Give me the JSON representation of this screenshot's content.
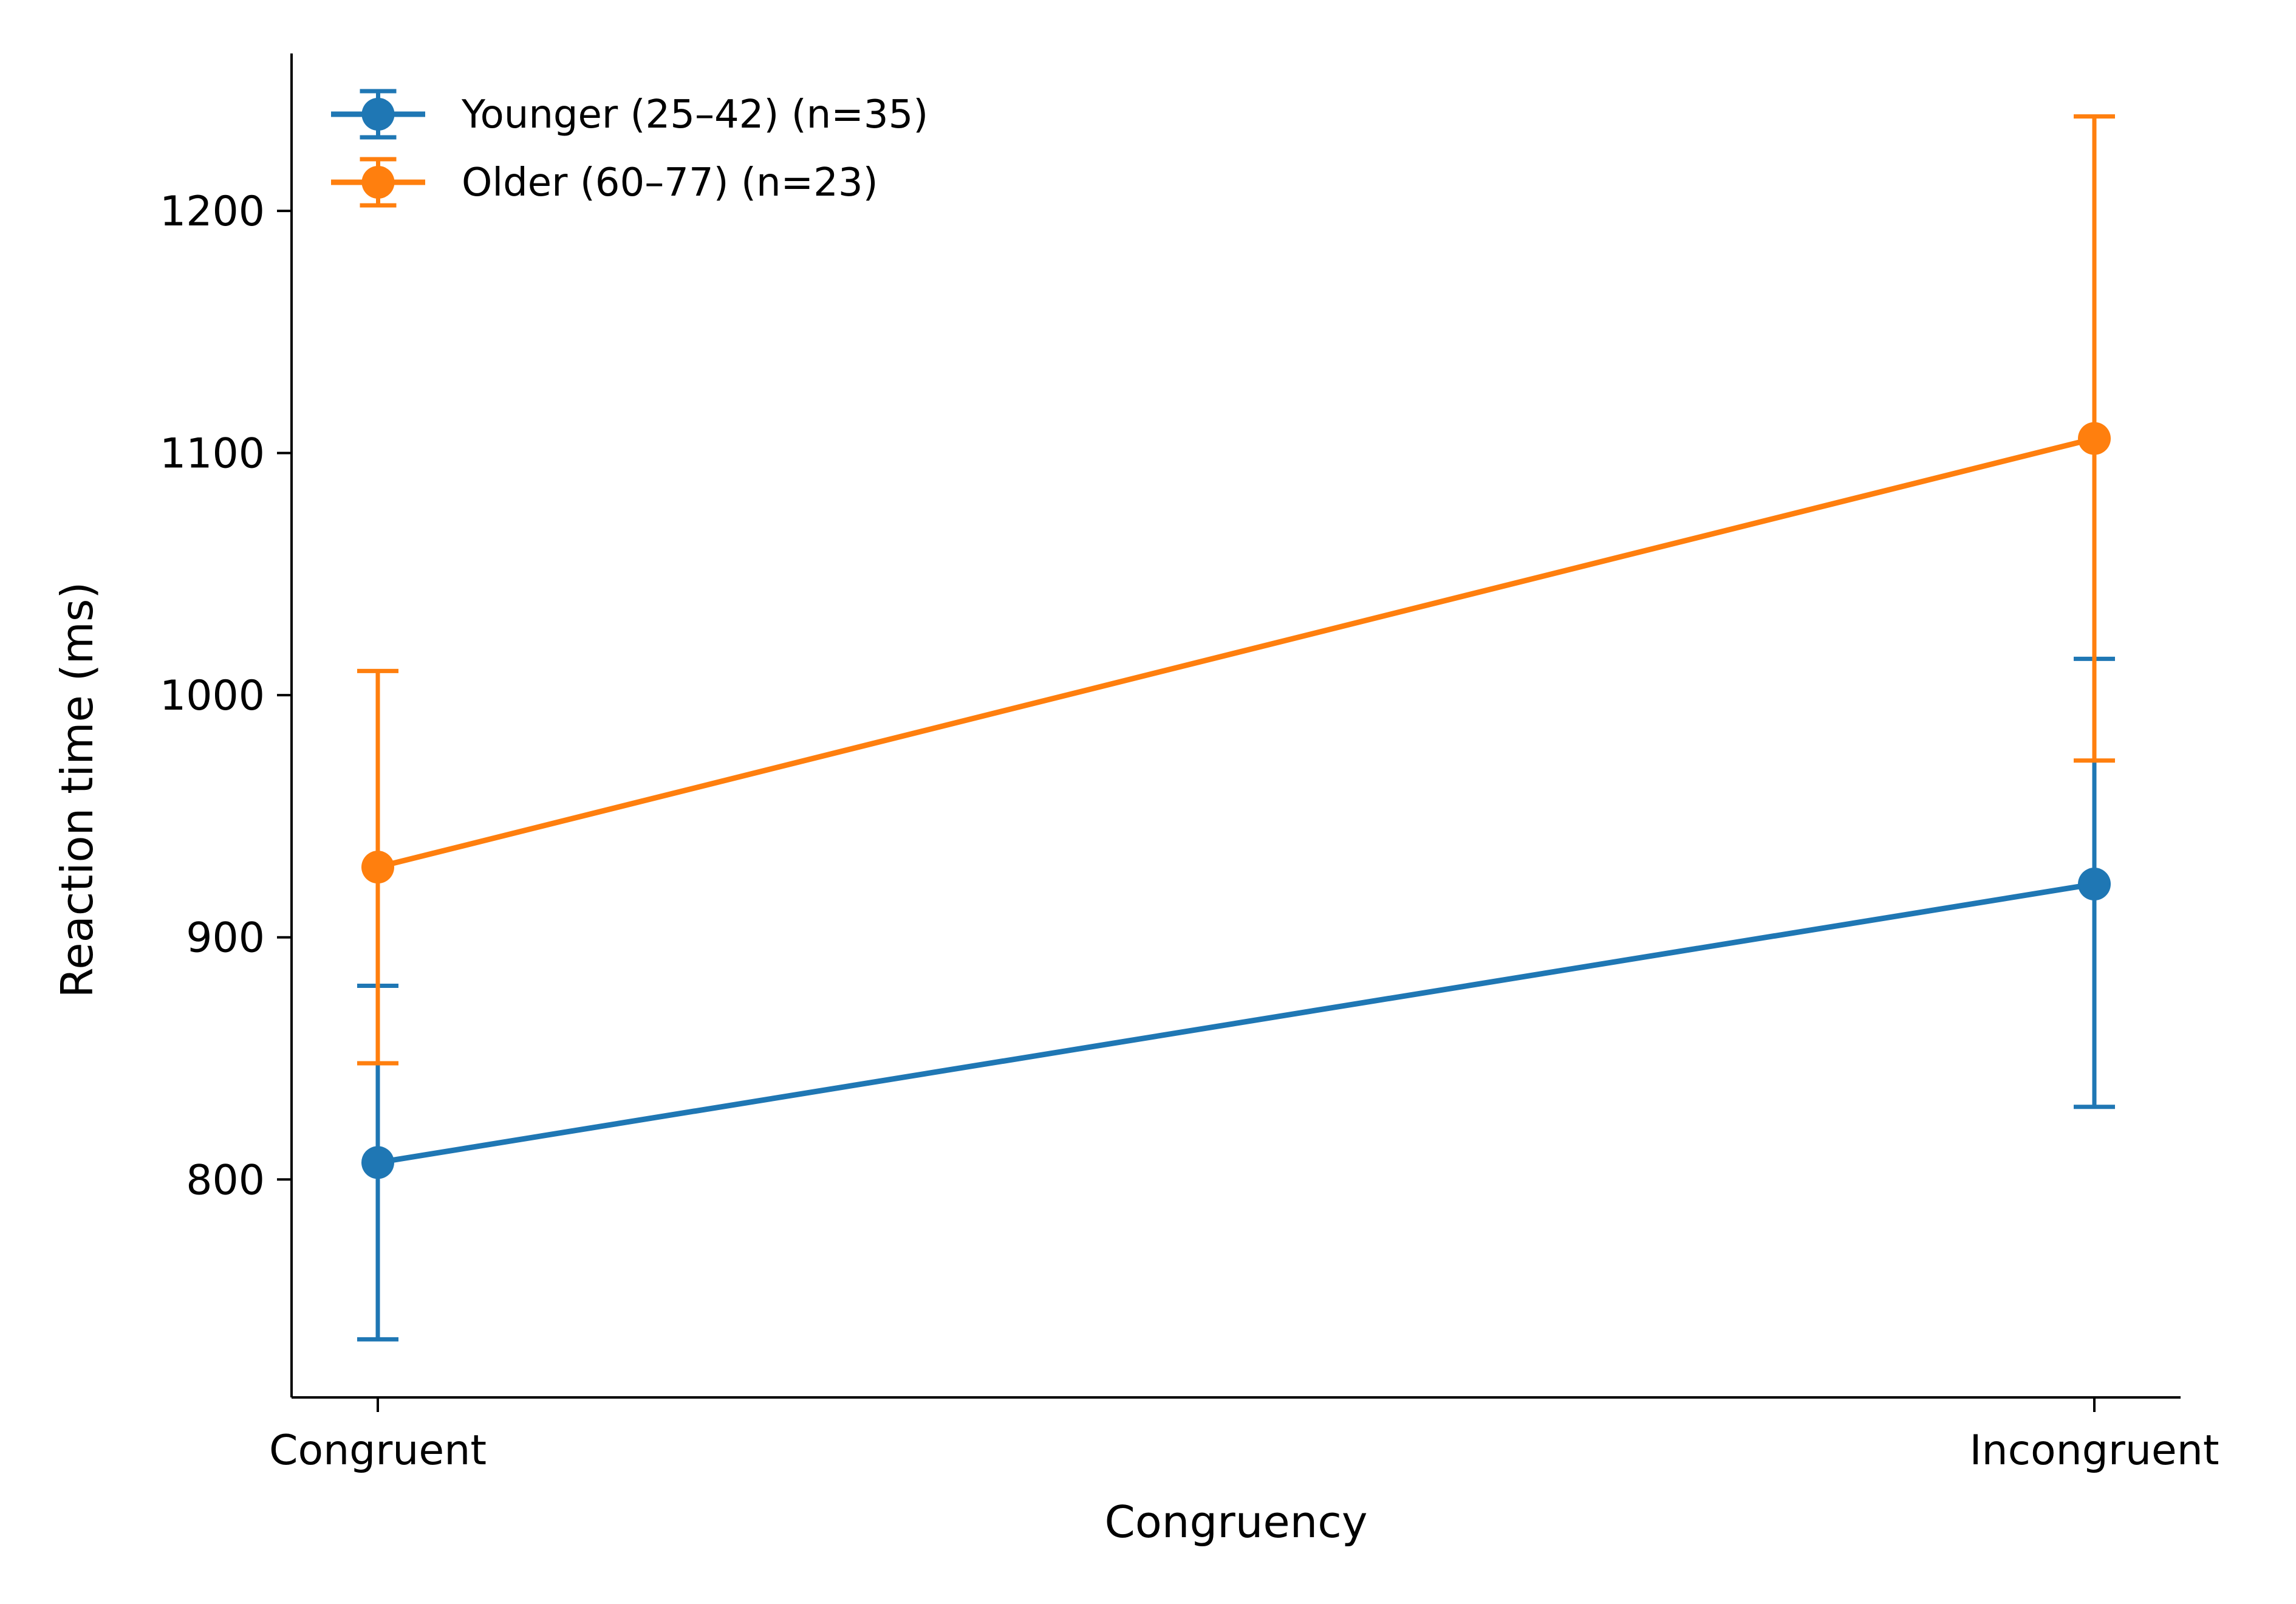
{
  "chart_data": {
    "type": "line",
    "title": "",
    "xlabel": "Congruency",
    "ylabel": "Reaction time (ms)",
    "categories": [
      "Congruent",
      "Incongruent"
    ],
    "ylim": [
      710,
      1265
    ],
    "yticks": [
      800,
      900,
      1000,
      1100,
      1200
    ],
    "grid": false,
    "legend_position": "top-left",
    "series": [
      {
        "name": "Younger (25–42) (n=35)",
        "color": "#1f77b4",
        "values": [
          807,
          922
        ],
        "error_low": [
          734,
          830
        ],
        "error_high": [
          880,
          1015
        ]
      },
      {
        "name": "Older (60–77) (n=23)",
        "color": "#ff7f0e",
        "values": [
          929,
          1106
        ],
        "error_low": [
          848,
          973
        ],
        "error_high": [
          1010,
          1239
        ]
      }
    ]
  }
}
